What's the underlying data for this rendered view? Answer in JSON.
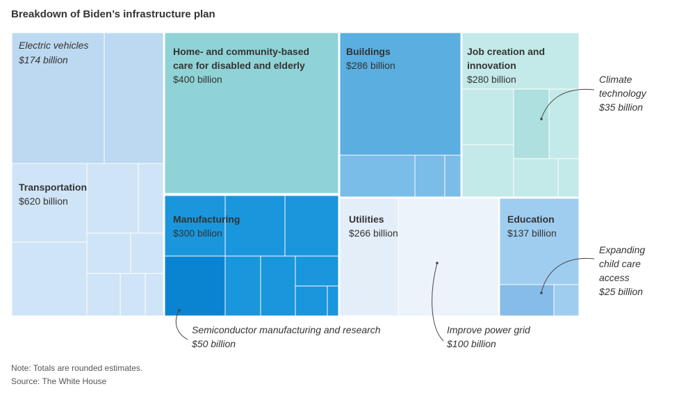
{
  "chart_data": {
    "type": "treemap",
    "title": "Breakdown of Biden’s infrastructure plan",
    "note": "Note: Totals are rounded estimates.",
    "source": "Source: The White House",
    "unit": "billion USD",
    "categories": [
      {
        "name": "Electric vehicles",
        "value": 174,
        "label": "$174 billion"
      },
      {
        "name": "Transportation",
        "value": 620,
        "label": "$620 billion"
      },
      {
        "name": "Home- and community-based care for disabled and elderly",
        "value": 400,
        "label": "$400 billion"
      },
      {
        "name": "Manufacturing",
        "value": 300,
        "label": "$300 billion"
      },
      {
        "name": "Buildings",
        "value": 286,
        "label": "$286 billion"
      },
      {
        "name": "Utilities",
        "value": 266,
        "label": "$266 billion"
      },
      {
        "name": "Job creation and innovation",
        "value": 280,
        "label": "$280 billion"
      },
      {
        "name": "Education",
        "value": 137,
        "label": "$137 billion"
      }
    ],
    "annotations": [
      {
        "name": "Climate technology",
        "value": 35,
        "label": "$35 billion",
        "parent": "Job creation and innovation"
      },
      {
        "name": "Expanding child care access",
        "value": 25,
        "label": "$25 billion",
        "parent": "Education"
      },
      {
        "name": "Semiconductor manufacturing and research",
        "value": 50,
        "label": "$50 billion",
        "parent": "Manufacturing"
      },
      {
        "name": "Improve power grid",
        "value": 100,
        "label": "$100 billion",
        "parent": "Utilities"
      }
    ],
    "colors": {
      "transportation": "#cfe4f6",
      "electric_vehicles": "#bcd9f1",
      "care": "#8fd3d7",
      "buildings": "#5aaee0",
      "buildings_sub": "#79bde8",
      "job_creation": "#c3e9e8",
      "climate": "#ade0df",
      "manufacturing": "#1a96dc",
      "semiconductor": "#0a84d0",
      "utilities": "#e4eef8",
      "power_grid": "#edf3fa",
      "education": "#9fcdf0",
      "child_care": "#85bce8"
    }
  }
}
